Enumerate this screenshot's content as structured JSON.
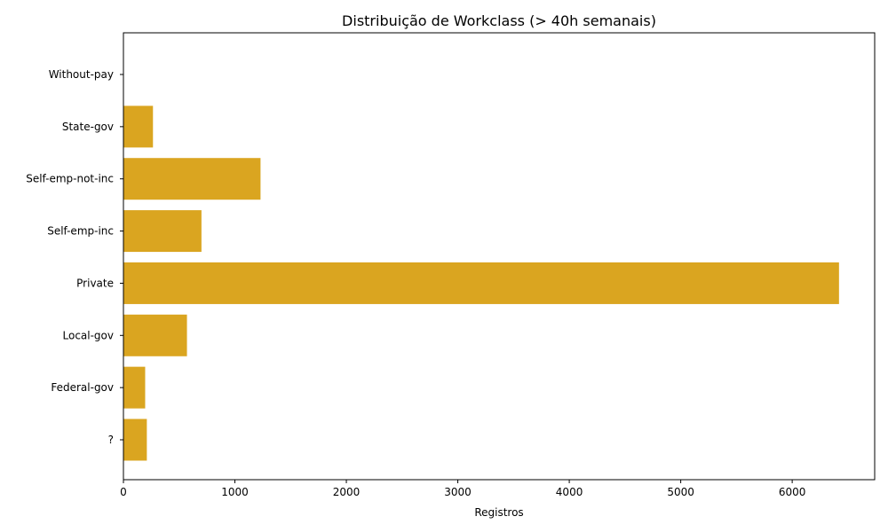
{
  "chart_data": {
    "type": "bar",
    "orientation": "horizontal",
    "title": "Distribuição de Workclass (> 40h semanais)",
    "xlabel": "Registros",
    "ylabel": "",
    "categories": [
      "?",
      "Federal-gov",
      "Local-gov",
      "Private",
      "Self-emp-inc",
      "Self-emp-not-inc",
      "State-gov",
      "Without-pay"
    ],
    "values": [
      210,
      195,
      570,
      6420,
      700,
      1230,
      265,
      3
    ],
    "xlim": [
      0,
      6740
    ],
    "xticks": [
      0,
      1000,
      2000,
      3000,
      4000,
      5000,
      6000
    ],
    "grid": false,
    "legend": false,
    "bar_color": "#DAA520"
  }
}
